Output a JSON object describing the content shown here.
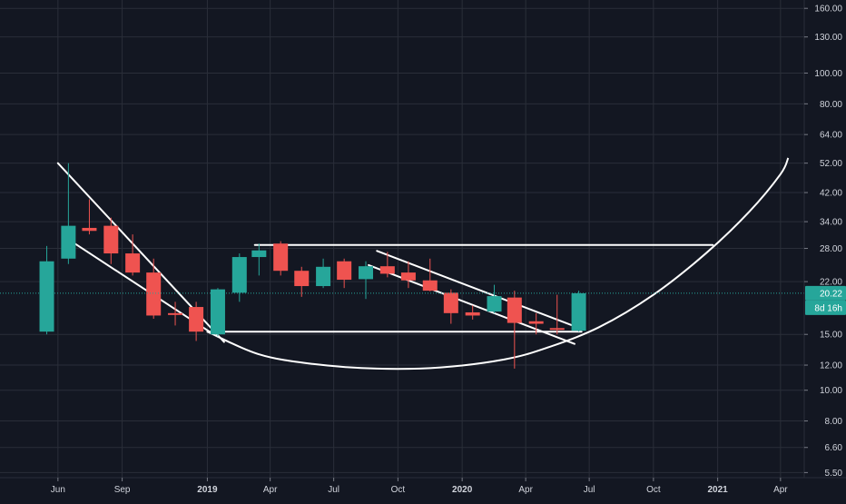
{
  "chart_data": {
    "type": "candlestick",
    "interval": "monthly",
    "y_scale": "log",
    "x_ticks": [
      "Jun",
      "Sep",
      "2019",
      "Apr",
      "Jul",
      "Oct",
      "2020",
      "Apr",
      "Jul",
      "Oct",
      "2021",
      "Apr"
    ],
    "x_tick_dates": [
      "2018-06-01",
      "2018-09-01",
      "2019-01-01",
      "2019-04-01",
      "2019-07-01",
      "2019-10-01",
      "2020-01-01",
      "2020-04-01",
      "2020-07-01",
      "2020-10-01",
      "2021-01-01",
      "2021-04-01"
    ],
    "bold_ticks": [
      "2019",
      "2020",
      "2021"
    ],
    "y_ticks": [
      "160.00",
      "130.00",
      "100.00",
      "80.00",
      "64.00",
      "52.00",
      "42.00",
      "34.00",
      "28.00",
      "22.00",
      "15.00",
      "12.00",
      "10.00",
      "8.00",
      "6.60",
      "5.50"
    ],
    "y_range": [
      5.3,
      170
    ],
    "x_range": [
      "2018-03-10",
      "2021-05-05"
    ],
    "candles": [
      {
        "date": "2018-05-01",
        "open": 15.3,
        "high": 28.5,
        "low": 15.0,
        "close": 25.5
      },
      {
        "date": "2018-06-01",
        "open": 26.0,
        "high": 52.0,
        "low": 25.0,
        "close": 33.0
      },
      {
        "date": "2018-07-01",
        "open": 32.5,
        "high": 40.0,
        "low": 31.0,
        "close": 31.8
      },
      {
        "date": "2018-08-01",
        "open": 33.0,
        "high": 35.0,
        "low": 25.0,
        "close": 27.0
      },
      {
        "date": "2018-09-01",
        "open": 27.0,
        "high": 31.0,
        "low": 23.0,
        "close": 23.5
      },
      {
        "date": "2018-10-01",
        "open": 23.5,
        "high": 26.0,
        "low": 16.8,
        "close": 17.2
      },
      {
        "date": "2018-11-01",
        "open": 17.5,
        "high": 19.0,
        "low": 16.0,
        "close": 17.4
      },
      {
        "date": "2018-12-01",
        "open": 18.3,
        "high": 19.0,
        "low": 14.3,
        "close": 15.3
      },
      {
        "date": "2019-01-01",
        "open": 15.0,
        "high": 21.0,
        "low": 14.8,
        "close": 20.8
      },
      {
        "date": "2019-02-01",
        "open": 20.3,
        "high": 27.0,
        "low": 19.0,
        "close": 26.3
      },
      {
        "date": "2019-03-01",
        "open": 26.3,
        "high": 29.0,
        "low": 23.0,
        "close": 27.6
      },
      {
        "date": "2019-04-01",
        "open": 29.0,
        "high": 29.5,
        "low": 23.0,
        "close": 23.8
      },
      {
        "date": "2019-05-01",
        "open": 23.8,
        "high": 24.5,
        "low": 19.7,
        "close": 21.3
      },
      {
        "date": "2019-06-01",
        "open": 21.3,
        "high": 26.0,
        "low": 21.0,
        "close": 24.5
      },
      {
        "date": "2019-07-01",
        "open": 25.5,
        "high": 26.0,
        "low": 21.0,
        "close": 22.3
      },
      {
        "date": "2019-08-01",
        "open": 22.4,
        "high": 25.5,
        "low": 19.4,
        "close": 24.6
      },
      {
        "date": "2019-09-01",
        "open": 24.6,
        "high": 27.3,
        "low": 22.7,
        "close": 23.3
      },
      {
        "date": "2019-10-01",
        "open": 23.5,
        "high": 25.5,
        "low": 21.0,
        "close": 22.2
      },
      {
        "date": "2019-11-01",
        "open": 22.2,
        "high": 26.0,
        "low": 20.5,
        "close": 20.6
      },
      {
        "date": "2019-12-01",
        "open": 20.3,
        "high": 20.8,
        "low": 16.2,
        "close": 17.5
      },
      {
        "date": "2020-01-01",
        "open": 17.6,
        "high": 18.5,
        "low": 16.7,
        "close": 17.2
      },
      {
        "date": "2020-02-01",
        "open": 17.7,
        "high": 21.5,
        "low": 17.5,
        "close": 19.8
      },
      {
        "date": "2020-03-01",
        "open": 19.6,
        "high": 20.6,
        "low": 11.7,
        "close": 16.3
      },
      {
        "date": "2020-04-01",
        "open": 16.5,
        "high": 17.5,
        "low": 15.0,
        "close": 16.2
      },
      {
        "date": "2020-05-01",
        "open": 15.7,
        "high": 20.0,
        "low": 15.0,
        "close": 15.5
      },
      {
        "date": "2020-06-01",
        "open": 15.4,
        "high": 20.6,
        "low": 15.3,
        "close": 20.22
      }
    ],
    "drawings": [
      {
        "kind": "line",
        "points": [
          [
            "2018-06-01",
            52.0
          ],
          [
            "2019-01-25",
            14.2
          ]
        ]
      },
      {
        "kind": "line",
        "points": [
          [
            "2018-06-10",
            30.5
          ],
          [
            "2019-01-10",
            15.0
          ]
        ]
      },
      {
        "kind": "line",
        "points": [
          [
            "2019-03-10",
            28.7
          ],
          [
            "2020-12-25",
            28.7
          ]
        ]
      },
      {
        "kind": "line",
        "points": [
          [
            "2019-01-01",
            15.3
          ],
          [
            "2020-06-20",
            15.3
          ]
        ]
      },
      {
        "kind": "line",
        "points": [
          [
            "2019-09-01",
            27.5
          ],
          [
            "2020-06-20",
            15.6
          ]
        ]
      },
      {
        "kind": "line",
        "points": [
          [
            "2019-08-20",
            24.8
          ],
          [
            "2020-06-10",
            14.0
          ]
        ]
      },
      {
        "kind": "curve",
        "points": [
          [
            "2019-01-01",
            15.3
          ],
          [
            "2019-03-15",
            13.0
          ],
          [
            "2019-06-01",
            12.1
          ],
          [
            "2019-09-01",
            11.7
          ],
          [
            "2019-12-01",
            11.8
          ],
          [
            "2020-03-01",
            12.5
          ],
          [
            "2020-05-01",
            13.6
          ],
          [
            "2020-07-15",
            15.8
          ],
          [
            "2020-10-01",
            20.0
          ],
          [
            "2020-12-15",
            27.0
          ],
          [
            "2021-02-15",
            36.5
          ],
          [
            "2021-04-01",
            48.0
          ],
          [
            "2021-04-12",
            54.0
          ]
        ]
      }
    ],
    "last_price": {
      "label": "20.22",
      "value": 20.22
    },
    "countdown": {
      "label": "8d 16h"
    },
    "colors": {
      "background": "#131722",
      "grid": "#2a2e39",
      "up": "#26a69a",
      "down": "#ef5350",
      "drawing": "#ffffff",
      "last_price": "#26a69a",
      "axis_text": "#d1d4dc"
    }
  }
}
